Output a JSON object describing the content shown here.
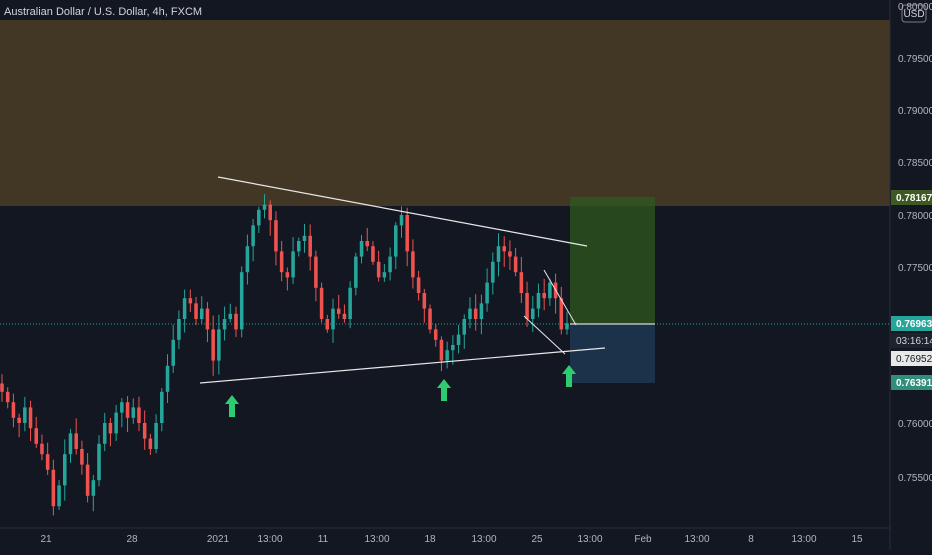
{
  "symbol_title": "Australian Dollar / U.S. Dollar, 4h, FXCM",
  "currency_badge": "USD",
  "colors": {
    "background": "#131722",
    "up": "#26a69a",
    "down": "#ef5350",
    "resistance_zone": "#5a4a2a",
    "profit_zone": "#2f5a1f",
    "loss_zone": "#1e3550",
    "trendline": "#e8e8e8",
    "arrow": "#2ecc71",
    "axis_text": "#b2b5be",
    "current_price_bg": "#26a69a",
    "stop_price_bg": "#2f8f7a"
  },
  "axis": {
    "price_ticks": [
      "0.80000",
      "0.79500",
      "0.79000",
      "0.78500",
      "0.78000",
      "0.77500",
      "0.77000",
      "0.76500",
      "0.76000",
      "0.75500"
    ],
    "date_ticks": [
      "21",
      "28",
      "2021",
      "13:00",
      "11",
      "13:00",
      "18",
      "13:00",
      "25",
      "13:00",
      "Feb",
      "13:00",
      "8",
      "13:00",
      "15"
    ]
  },
  "price_labels": {
    "target": "0.78167",
    "current": "0.76963",
    "countdown": "03:16:14",
    "entry": "0.76952",
    "stop": "0.76391"
  },
  "chart_data": {
    "type": "candlestick",
    "title": "Australian Dollar / U.S. Dollar, 4h, FXCM",
    "y_range": [
      0.75,
      0.8
    ],
    "zones": {
      "resistance": [
        0.781,
        0.8
      ],
      "profit": [
        0.76963,
        0.78167
      ],
      "loss": [
        0.76391,
        0.76963
      ]
    },
    "close_path": [
      0.763,
      0.762,
      0.7605,
      0.76,
      0.7615,
      0.7595,
      0.758,
      0.757,
      0.7555,
      0.752,
      0.754,
      0.757,
      0.759,
      0.7575,
      0.756,
      0.753,
      0.7545,
      0.758,
      0.76,
      0.759,
      0.761,
      0.762,
      0.7605,
      0.7615,
      0.76,
      0.7585,
      0.7575,
      0.76,
      0.763,
      0.7655,
      0.768,
      0.77,
      0.772,
      0.7715,
      0.77,
      0.771,
      0.769,
      0.766,
      0.769,
      0.77,
      0.7705,
      0.769,
      0.7745,
      0.777,
      0.779,
      0.7805,
      0.781,
      0.7795,
      0.7765,
      0.7745,
      0.774,
      0.7765,
      0.7775,
      0.778,
      0.776,
      0.773,
      0.77,
      0.769,
      0.771,
      0.7705,
      0.77,
      0.773,
      0.776,
      0.7775,
      0.777,
      0.7755,
      0.774,
      0.7745,
      0.776,
      0.779,
      0.78,
      0.7765,
      0.774,
      0.7725,
      0.771,
      0.769,
      0.768,
      0.766,
      0.767,
      0.7675,
      0.7685,
      0.77,
      0.771,
      0.77,
      0.7715,
      0.7735,
      0.7755,
      0.777,
      0.7765,
      0.776,
      0.7745,
      0.7725,
      0.77,
      0.771,
      0.7725,
      0.772,
      0.7735,
      0.772,
      0.769,
      0.7696
    ],
    "patterns": {
      "upper_trendline": {
        "start": [
          "2021-01-01",
          0.7825
        ],
        "end": [
          "2021-01-29",
          0.777
        ]
      },
      "lower_trendline": {
        "start": [
          "2020-12-31",
          0.7638
        ],
        "end": [
          "2021-01-30",
          0.767
        ]
      },
      "wedge_upper": {
        "start": [
          "2021-01-26",
          0.7745
        ],
        "end": [
          "2021-01-28",
          0.77
        ]
      },
      "wedge_lower": {
        "start": [
          "2021-01-25",
          0.771
        ],
        "end": [
          "2021-01-28",
          0.7665
        ]
      }
    },
    "arrows": [
      "2021-01-05",
      "2021-01-19",
      "2021-01-28"
    ]
  }
}
